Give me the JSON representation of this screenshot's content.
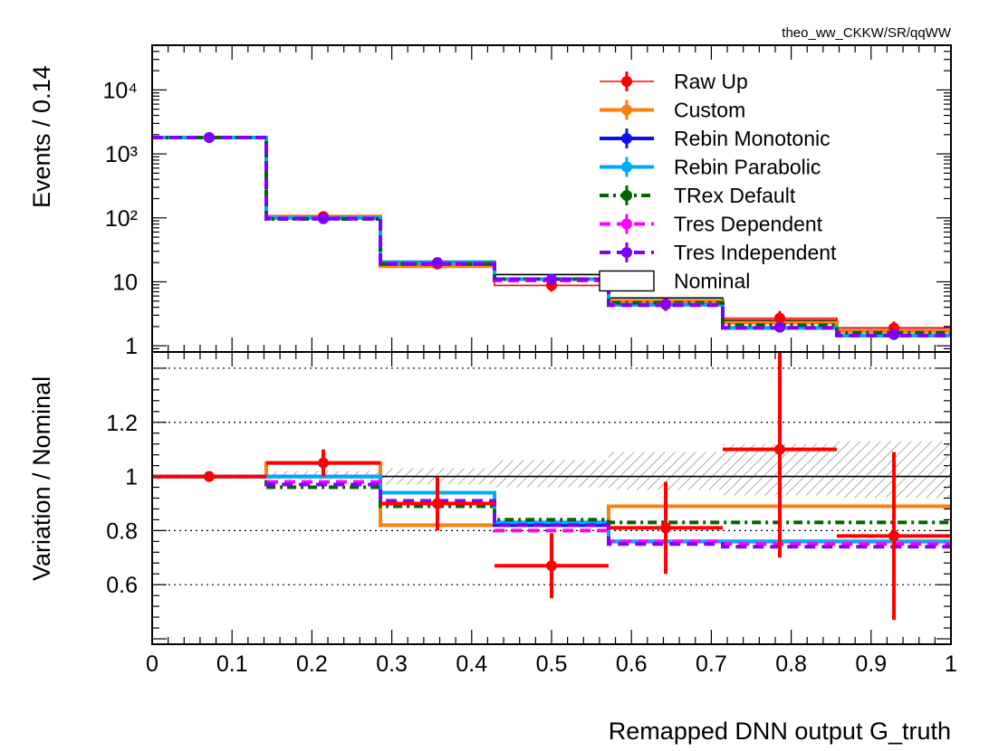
{
  "chart_data": [
    {
      "panel": "top",
      "type": "line",
      "drawstyle": "steps",
      "tag": "theo_ww_CKKW/SR/qqWW",
      "ylabel": "Events / 0.14",
      "yscale": "log",
      "ylim": [
        0.8,
        50000
      ],
      "xlim": [
        0,
        1
      ],
      "grid": false,
      "legend_position": "top-right",
      "y_tick_labels": [
        "1",
        "10",
        "10²",
        "10³",
        "10⁴"
      ],
      "x_edges": [
        0,
        0.1429,
        0.2857,
        0.4286,
        0.5714,
        0.7143,
        0.8571,
        1.0
      ],
      "nominal": {
        "name": "Nominal",
        "color": "#000000",
        "values": [
          1800,
          100,
          21,
          13,
          5.6,
          2.5,
          1.9
        ]
      },
      "series": [
        {
          "name": "Raw Up",
          "color": "#ff0000",
          "style": "solid",
          "values": [
            1800,
            105,
            19,
            8.8,
            4.5,
            2.7,
            1.9
          ],
          "errors": [
            20,
            6,
            2.5,
            1.8,
            1.0,
            0.8,
            0.5
          ]
        },
        {
          "name": "Custom",
          "color": "#ff7f0e",
          "style": "solid",
          "values": [
            1800,
            105,
            17.5,
            11,
            5.0,
            2.3,
            1.7
          ]
        },
        {
          "name": "Rebin Monotonic",
          "color": "#1010ee",
          "style": "solid",
          "values": [
            1800,
            100,
            20,
            11,
            4.4,
            1.9,
            1.45
          ]
        },
        {
          "name": "Rebin Parabolic",
          "color": "#00aaff",
          "style": "solid",
          "values": [
            1800,
            100,
            20,
            11,
            4.4,
            1.9,
            1.45
          ]
        },
        {
          "name": "TRex Default",
          "color": "#006400",
          "style": "dashdot",
          "values": [
            1800,
            96,
            19,
            11,
            4.7,
            2.1,
            1.6
          ]
        },
        {
          "name": "Tres Dependent",
          "color": "#ff00ff",
          "style": "dashed",
          "values": [
            1800,
            98,
            19,
            10.5,
            4.4,
            1.9,
            1.45
          ]
        },
        {
          "name": "Tres Independent",
          "color": "#8000ff",
          "style": "dashed",
          "values": [
            1800,
            97,
            19,
            11,
            4.3,
            1.9,
            1.45
          ]
        }
      ],
      "markers": [
        {
          "color": "#ff0000",
          "x": [
            0.0714,
            0.2143,
            0.3571,
            0.5,
            0.6429,
            0.7857,
            0.9286
          ],
          "y": [
            1800,
            105,
            19,
            8.8,
            4.5,
            2.7,
            1.9
          ]
        },
        {
          "color": "#8000ff",
          "x": [
            0.0714,
            0.2143,
            0.3571,
            0.5,
            0.6429,
            0.7857,
            0.9286
          ],
          "y": [
            1800,
            97,
            20,
            11,
            4.4,
            1.95,
            1.5
          ]
        }
      ]
    },
    {
      "panel": "bottom",
      "type": "line",
      "drawstyle": "steps",
      "ylabel": "Variation / Nominal",
      "xlabel": "Remapped DNN output G_truth",
      "ylim": [
        0.38,
        1.46
      ],
      "xlim": [
        0,
        1
      ],
      "grid": "horizontal dotted",
      "y_tick_labels": [
        "0.6",
        "0.8",
        "1",
        "1.2"
      ],
      "x_tick_labels": [
        "0",
        "0.1",
        "0.2",
        "0.3",
        "0.4",
        "0.5",
        "0.6",
        "0.7",
        "0.8",
        "0.9",
        "1"
      ],
      "x_edges": [
        0,
        0.1429,
        0.2857,
        0.4286,
        0.5714,
        0.7143,
        0.8571,
        1.0
      ],
      "uncertainty_band": {
        "upper": [
          1.0,
          1.02,
          1.03,
          1.06,
          1.09,
          1.12,
          1.13
        ],
        "lower": [
          1.0,
          0.99,
          0.97,
          0.96,
          0.95,
          0.93,
          0.92
        ]
      },
      "series": [
        {
          "name": "Raw Up",
          "color": "#ff0000",
          "x": [
            0.0714,
            0.2143,
            0.3571,
            0.5,
            0.6429,
            0.7857,
            0.9286
          ],
          "values": [
            1.0,
            1.05,
            0.9,
            0.67,
            0.81,
            1.1,
            0.78
          ],
          "errors": [
            0.005,
            0.05,
            0.1,
            0.12,
            0.17,
            0.4,
            0.31
          ]
        },
        {
          "name": "Custom",
          "color": "#ff7f0e",
          "style": "solid",
          "values": [
            1.0,
            1.05,
            0.82,
            0.82,
            0.89,
            0.89,
            0.89
          ]
        },
        {
          "name": "Rebin Monotonic",
          "color": "#1010ee",
          "style": "solid",
          "values": [
            1.0,
            1.0,
            0.9,
            0.82,
            0.76,
            0.76,
            0.76
          ]
        },
        {
          "name": "Rebin Parabolic",
          "color": "#00aaff",
          "style": "solid",
          "values": [
            1.0,
            1.0,
            0.94,
            0.83,
            0.76,
            0.76,
            0.76
          ]
        },
        {
          "name": "TRex Default",
          "color": "#006400",
          "style": "dashdot",
          "values": [
            1.0,
            0.96,
            0.89,
            0.84,
            0.83,
            0.83,
            0.83
          ]
        },
        {
          "name": "Tres Dependent",
          "color": "#ff00ff",
          "style": "dashed",
          "values": [
            1.0,
            0.98,
            0.9,
            0.8,
            0.76,
            0.75,
            0.75
          ]
        },
        {
          "name": "Tres Independent",
          "color": "#8000ff",
          "style": "dashed",
          "values": [
            1.0,
            0.97,
            0.91,
            0.82,
            0.75,
            0.74,
            0.74
          ]
        }
      ]
    }
  ]
}
